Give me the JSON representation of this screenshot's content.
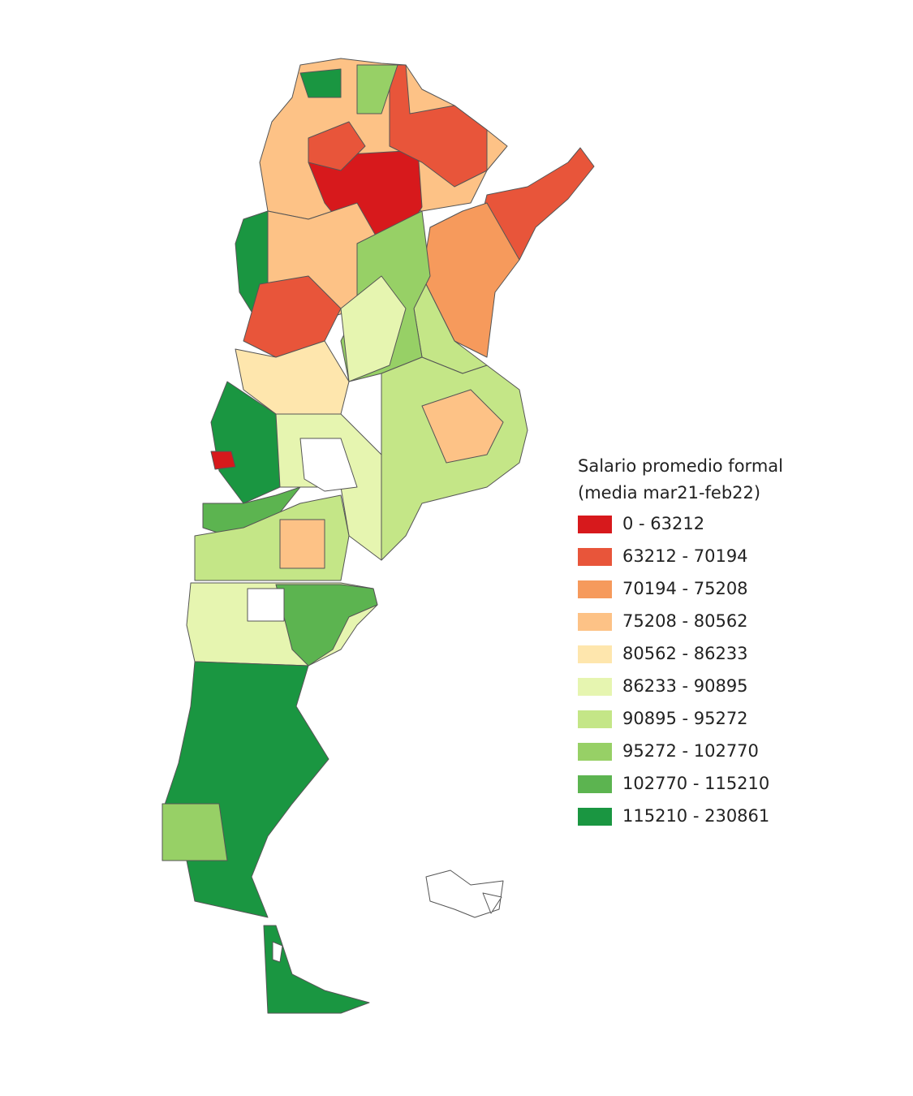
{
  "legend": {
    "title": [
      "Salario promedio formal",
      "(media mar21-feb22)"
    ],
    "items": [
      {
        "label": "0 - 63212",
        "color": "#d7191c"
      },
      {
        "label": "63212 - 70194",
        "color": "#e8553a"
      },
      {
        "label": "70194 - 75208",
        "color": "#f69a5c"
      },
      {
        "label": "75208 - 80562",
        "color": "#fdc286"
      },
      {
        "label": "80562 - 86233",
        "color": "#fee6ad"
      },
      {
        "label": "86233 - 90895",
        "color": "#e6f5b0"
      },
      {
        "label": "90895 - 95272",
        "color": "#c4e687"
      },
      {
        "label": "95272 - 102770",
        "color": "#97d066"
      },
      {
        "label": "102770 - 115210",
        "color": "#5cb450"
      },
      {
        "label": "115210 - 230861",
        "color": "#1a9641"
      }
    ]
  }
}
